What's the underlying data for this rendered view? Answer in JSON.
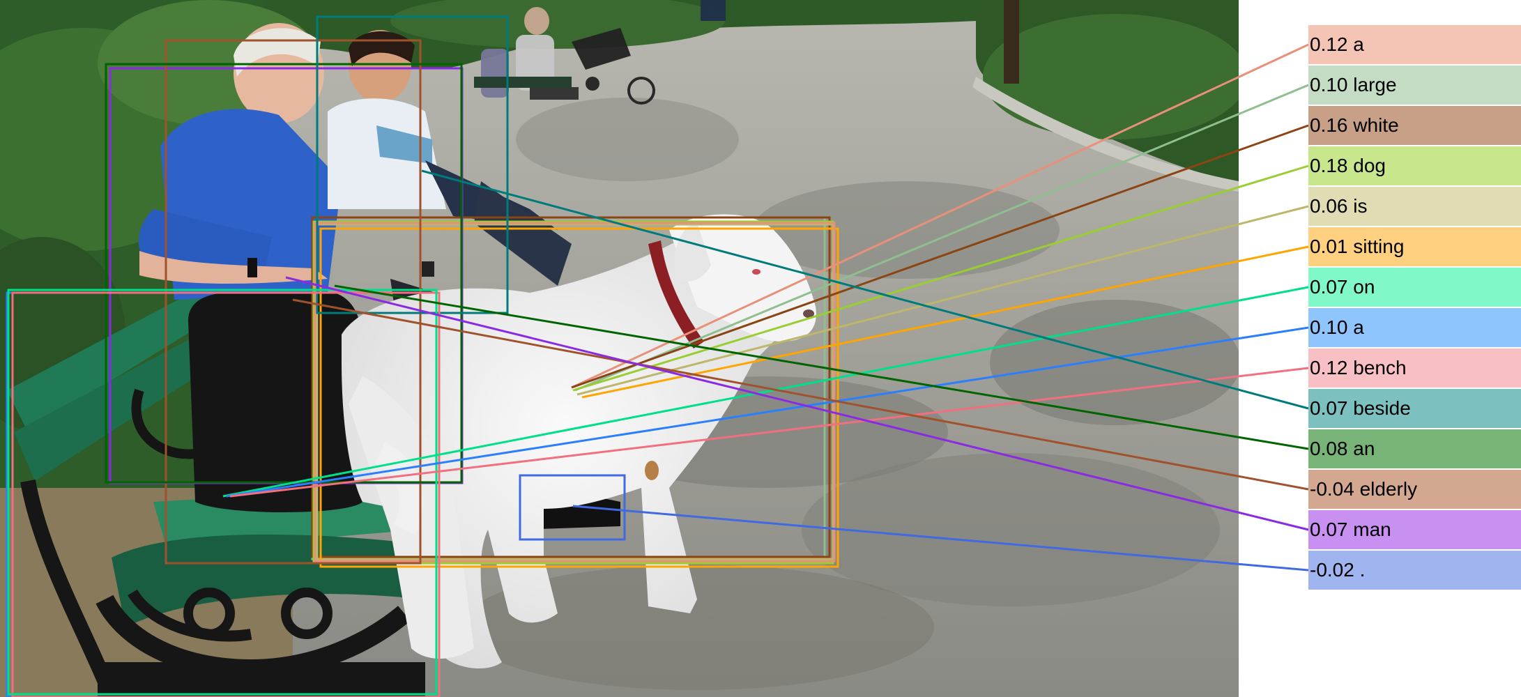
{
  "photo": {
    "description_icon": "park-scene-photo",
    "sign_text": ""
  },
  "tokens": [
    {
      "text": "0.12 a",
      "color": "#f4c4b4",
      "line": "#e8907a"
    },
    {
      "text": "0.10 large",
      "color": "#c4dcc4",
      "line": "#8fbf8f"
    },
    {
      "text": "0.16 white",
      "color": "#c8a088",
      "line": "#8b4513"
    },
    {
      "text": "0.18 dog",
      "color": "#c8e68c",
      "line": "#9acd32"
    },
    {
      "text": "0.06 is",
      "color": "#e0dcb4",
      "line": "#bdb76b"
    },
    {
      "text": "0.01 sitting",
      "color": "#ffd080",
      "line": "#ffa500"
    },
    {
      "text": "0.07 on",
      "color": "#80f8c8",
      "line": "#00e08a"
    },
    {
      "text": "0.10 a",
      "color": "#90c4fc",
      "line": "#2a7fff"
    },
    {
      "text": "0.12 bench",
      "color": "#f8c0c4",
      "line": "#f07080"
    },
    {
      "text": "0.07 beside",
      "color": "#7cc0c0",
      "line": "#007b7b"
    },
    {
      "text": "0.08 an",
      "color": "#78b478",
      "line": "#006400"
    },
    {
      "text": "-0.04 elderly",
      "color": "#d4a890",
      "line": "#a0522d"
    },
    {
      "text": "0.07 man",
      "color": "#c890f0",
      "line": "#8a2be2"
    },
    {
      "text": "-0.02 .",
      "color": "#a0b4f0",
      "line": "#4169e1"
    }
  ]
}
